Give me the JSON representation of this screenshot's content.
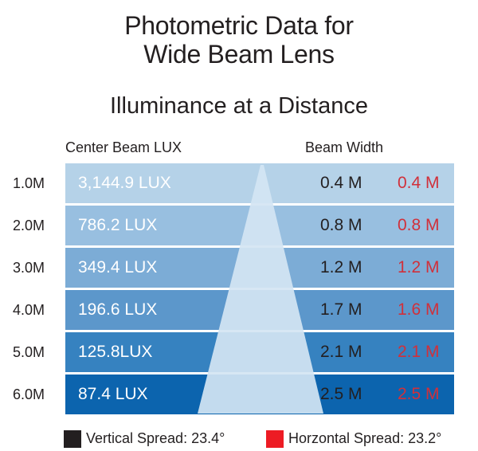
{
  "title_line1": "Photometric Data for",
  "title_line2": "Wide Beam Lens",
  "subtitle": "Illuminance at a Distance",
  "col_lux": "Center Beam LUX",
  "col_width": "Beam Width",
  "colors": {
    "rows": [
      "#b5d2e8",
      "#98bfe0",
      "#7cacd6",
      "#5c97cb",
      "#3682c0",
      "#0c64ae"
    ],
    "beam": "#d4e5f3",
    "horizontal": "#d1303a",
    "vertical_swatch": "#231f20",
    "horizontal_swatch": "#ed1c24"
  },
  "rows": [
    {
      "dist": "1.0M",
      "lux": "3,144.9 LUX",
      "vertical": "0.4 M",
      "horizontal": "0.4 M"
    },
    {
      "dist": "2.0M",
      "lux": "786.2 LUX",
      "vertical": "0.8 M",
      "horizontal": "0.8 M"
    },
    {
      "dist": "3.0M",
      "lux": "349.4 LUX",
      "vertical": "1.2 M",
      "horizontal": "1.2 M"
    },
    {
      "dist": "4.0M",
      "lux": "196.6 LUX",
      "vertical": "1.7 M",
      "horizontal": "1.6 M"
    },
    {
      "dist": "5.0M",
      "lux": "125.8LUX",
      "vertical": "2.1 M",
      "horizontal": "2.1 M"
    },
    {
      "dist": "6.0M",
      "lux": "87.4 LUX",
      "vertical": "2.5 M",
      "horizontal": "2.5 M"
    }
  ],
  "legend": {
    "vertical": "Vertical Spread: 23.4°",
    "horizontal": "Horzontal Spread: 23.2°"
  }
}
